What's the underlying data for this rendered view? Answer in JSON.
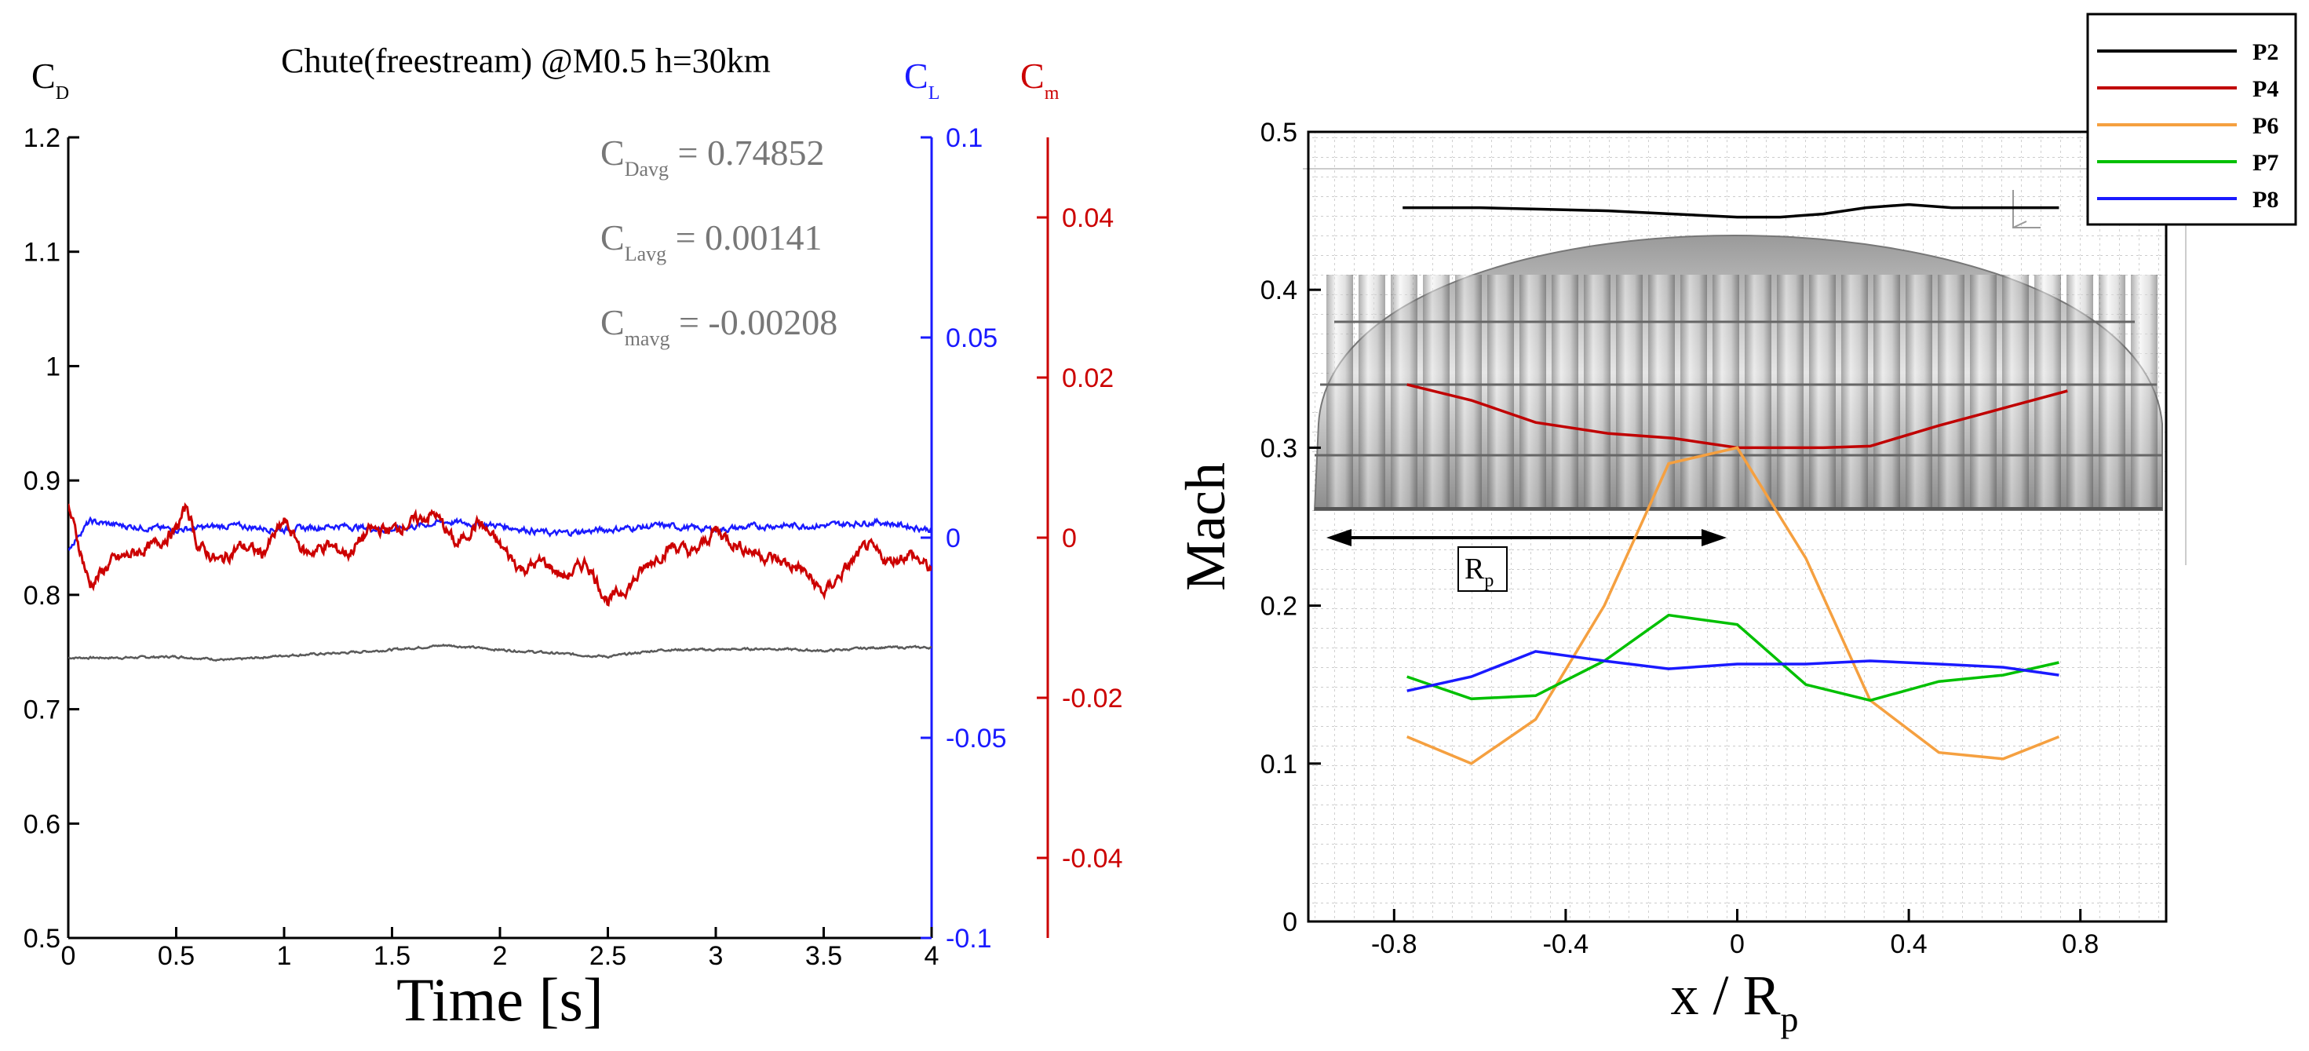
{
  "colors": {
    "cd": "#5a5a5a",
    "cl": "#1a1aff",
    "cm": "#cc0000",
    "p2": "#000000",
    "p4": "#c00000",
    "p6": "#f5a040",
    "p7": "#00c000",
    "p8": "#1a1aff",
    "stats_text": "#777777",
    "canopy": "#b8b8b8"
  },
  "chart_data": [
    {
      "type": "line",
      "title": "Chute(freestream) @M0.5 h=30km",
      "xlabel": "Time [s]",
      "xlim": [
        0,
        4
      ],
      "x_ticks": [
        0,
        0.5,
        1,
        1.5,
        2,
        2.5,
        3,
        3.5,
        4
      ],
      "axes": {
        "cd": {
          "label_main": "C",
          "label_sub": "D",
          "ylim": [
            0.5,
            1.2
          ],
          "ticks": [
            0.5,
            0.6,
            0.7,
            0.8,
            0.9,
            1,
            1.1,
            1.2
          ],
          "color": "#000000"
        },
        "cl": {
          "label_main": "C",
          "label_sub": "L",
          "ylim": [
            -0.1,
            0.1
          ],
          "ticks": [
            -0.1,
            -0.05,
            0,
            0.05,
            0.1
          ],
          "color": "#1a1aff"
        },
        "cm": {
          "label_main": "C",
          "label_sub": "m",
          "ylim": [
            -0.05,
            0.05
          ],
          "ticks": [
            -0.04,
            -0.02,
            0,
            0.02,
            0.04
          ],
          "color": "#cc0000"
        }
      },
      "series": [
        {
          "axis": "cd",
          "x": [
            0,
            0.25,
            0.5,
            0.75,
            1,
            1.25,
            1.5,
            1.75,
            2,
            2.25,
            2.5,
            2.75,
            3,
            3.25,
            3.5,
            3.75,
            4
          ],
          "values": [
            0.745,
            0.745,
            0.746,
            0.743,
            0.747,
            0.749,
            0.752,
            0.756,
            0.752,
            0.749,
            0.746,
            0.752,
            0.752,
            0.753,
            0.751,
            0.754,
            0.754
          ]
        },
        {
          "axis": "cl",
          "x": [
            0,
            0.05,
            0.1,
            0.25,
            0.5,
            0.75,
            1,
            1.25,
            1.5,
            1.75,
            2,
            2.25,
            2.5,
            2.75,
            3,
            3.25,
            3.5,
            3.75,
            4
          ],
          "values": [
            -0.003,
            0.001,
            0.004,
            0.003,
            0.002,
            0.003,
            0.002,
            0.003,
            0.002,
            0.004,
            0.003,
            0.001,
            0.002,
            0.003,
            0.002,
            0.003,
            0.003,
            0.004,
            0.002
          ]
        },
        {
          "axis": "cm",
          "x": [
            0,
            0.03,
            0.1,
            0.2,
            0.3,
            0.4,
            0.5,
            0.55,
            0.6,
            0.7,
            0.8,
            0.9,
            1,
            1.1,
            1.2,
            1.3,
            1.4,
            1.5,
            1.6,
            1.7,
            1.8,
            1.9,
            2,
            2.1,
            2.2,
            2.3,
            2.4,
            2.5,
            2.6,
            2.7,
            2.8,
            2.9,
            3,
            3.1,
            3.2,
            3.3,
            3.4,
            3.5,
            3.6,
            3.7,
            3.8,
            3.9,
            4
          ],
          "values": [
            0.004,
            0.001,
            -0.006,
            -0.003,
            -0.002,
            -0.001,
            0.001,
            0.004,
            -0.001,
            -0.003,
            -0.001,
            -0.002,
            0.002,
            -0.002,
            -0.001,
            -0.002,
            0.001,
            0.001,
            0.002,
            0.003,
            -0.001,
            0.002,
            -0.001,
            -0.004,
            -0.003,
            -0.005,
            -0.003,
            -0.008,
            -0.006,
            -0.003,
            -0.001,
            -0.002,
            0.001,
            -0.001,
            -0.002,
            -0.003,
            -0.004,
            -0.007,
            -0.004,
            -0.001,
            -0.003,
            -0.002,
            -0.004
          ]
        }
      ],
      "annotations": [
        {
          "main": "C",
          "sub": "Davg",
          "value": " = 0.74852"
        },
        {
          "main": "C",
          "sub": "Lavg",
          "value": " = 0.00141"
        },
        {
          "main": "C",
          "sub": "mavg",
          "value": " = -0.00208"
        }
      ]
    },
    {
      "type": "line",
      "xlabel_main": "x / R",
      "xlabel_sub": "p",
      "ylabel": "Mach",
      "xlim": [
        -1,
        1
      ],
      "ylim": [
        0,
        0.5
      ],
      "x_ticks": [
        -0.8,
        -0.4,
        0,
        0.4,
        0.8
      ],
      "y_ticks": [
        0,
        0.1,
        0.2,
        0.3,
        0.4,
        0.5
      ],
      "grid": true,
      "legend": "top-right",
      "scale_arrow_label_main": "R",
      "scale_arrow_label_sub": "p",
      "series": [
        {
          "name": "P2",
          "x": [
            -0.78,
            -0.6,
            -0.45,
            -0.3,
            -0.15,
            0,
            0.1,
            0.2,
            0.3,
            0.4,
            0.5,
            0.6,
            0.75
          ],
          "values": [
            0.452,
            0.452,
            0.451,
            0.45,
            0.448,
            0.446,
            0.446,
            0.448,
            0.452,
            0.454,
            0.452,
            0.452,
            0.452
          ]
        },
        {
          "name": "P4",
          "x": [
            -0.77,
            -0.62,
            -0.47,
            -0.3,
            -0.15,
            0,
            0.1,
            0.2,
            0.31,
            0.47,
            0.62,
            0.77
          ],
          "values": [
            0.34,
            0.33,
            0.316,
            0.309,
            0.306,
            0.3,
            0.3,
            0.3,
            0.301,
            0.314,
            0.325,
            0.336
          ]
        },
        {
          "name": "P6",
          "x": [
            -0.77,
            -0.62,
            -0.47,
            -0.31,
            -0.16,
            0,
            0.16,
            0.31,
            0.47,
            0.62,
            0.75
          ],
          "values": [
            0.117,
            0.1,
            0.128,
            0.2,
            0.29,
            0.3,
            0.23,
            0.14,
            0.107,
            0.103,
            0.117
          ]
        },
        {
          "name": "P7",
          "x": [
            -0.77,
            -0.62,
            -0.47,
            -0.31,
            -0.16,
            0,
            0.16,
            0.31,
            0.47,
            0.62,
            0.75
          ],
          "values": [
            0.155,
            0.141,
            0.143,
            0.165,
            0.194,
            0.188,
            0.15,
            0.14,
            0.152,
            0.156,
            0.164
          ]
        },
        {
          "name": "P8",
          "x": [
            -0.77,
            -0.62,
            -0.47,
            -0.31,
            -0.16,
            0,
            0.16,
            0.31,
            0.47,
            0.62,
            0.75
          ],
          "values": [
            0.146,
            0.155,
            0.171,
            0.165,
            0.16,
            0.163,
            0.163,
            0.165,
            0.163,
            0.161,
            0.156
          ]
        }
      ]
    }
  ]
}
